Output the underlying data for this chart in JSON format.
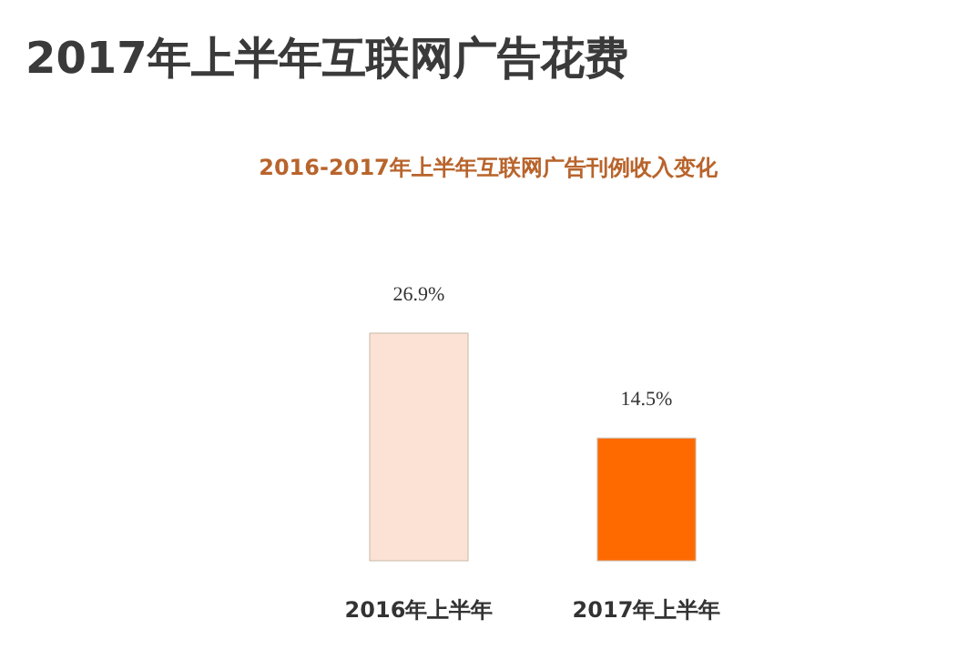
{
  "chart_data": {
    "type": "bar",
    "title": "2017年上半年互联网广告花费",
    "subtitle": "2016-2017年上半年互联网广告刊例收入变化",
    "categories": [
      "2016年上半年",
      "2017年上半年"
    ],
    "values": [
      26.9,
      14.5
    ],
    "value_labels": [
      "26.9%",
      "14.5%"
    ],
    "colors": [
      "#fbe2d4",
      "#ff6a00"
    ]
  }
}
